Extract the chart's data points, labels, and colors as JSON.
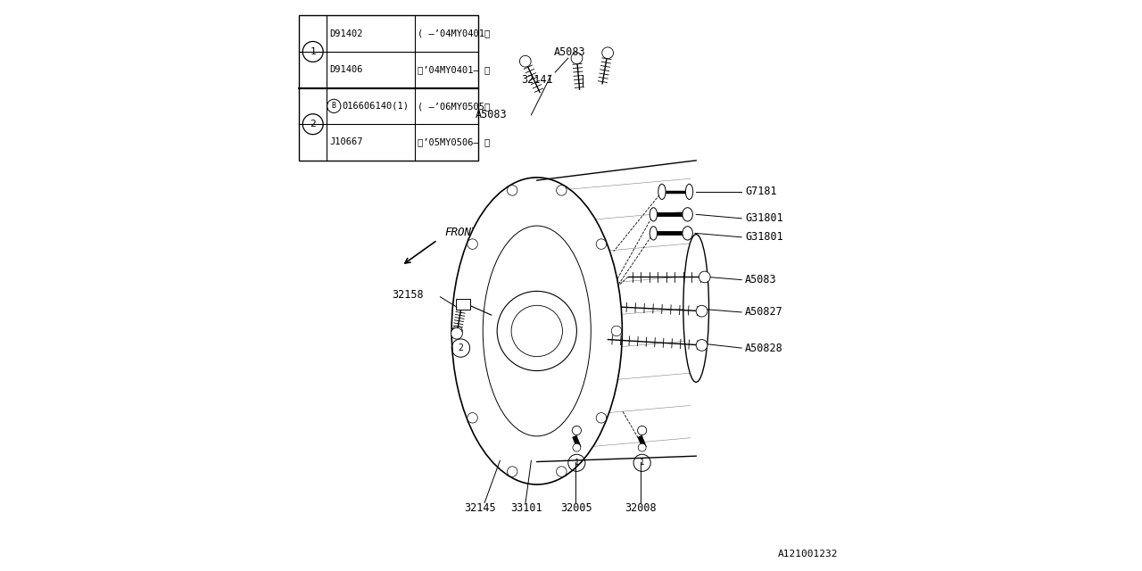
{
  "bg_color": "#ffffff",
  "line_color": "#000000",
  "fig_width": 12.8,
  "fig_height": 6.4,
  "part_number_bottom_right": "A121001232",
  "table": {
    "rows": [
      {
        "circle": "1",
        "col1": "D91402",
        "col2": "( –’04MY0401〉"
      },
      {
        "circle": "1",
        "col1": "D91406",
        "col2": "〈’04MY0401– 〉"
      },
      {
        "circle": "2",
        "col1": "016606140(1)",
        "col2": "( –’06MY0505〉"
      },
      {
        "circle": "2",
        "col1": "J10667",
        "col2": "〈’05MY0506– 〉"
      }
    ]
  }
}
